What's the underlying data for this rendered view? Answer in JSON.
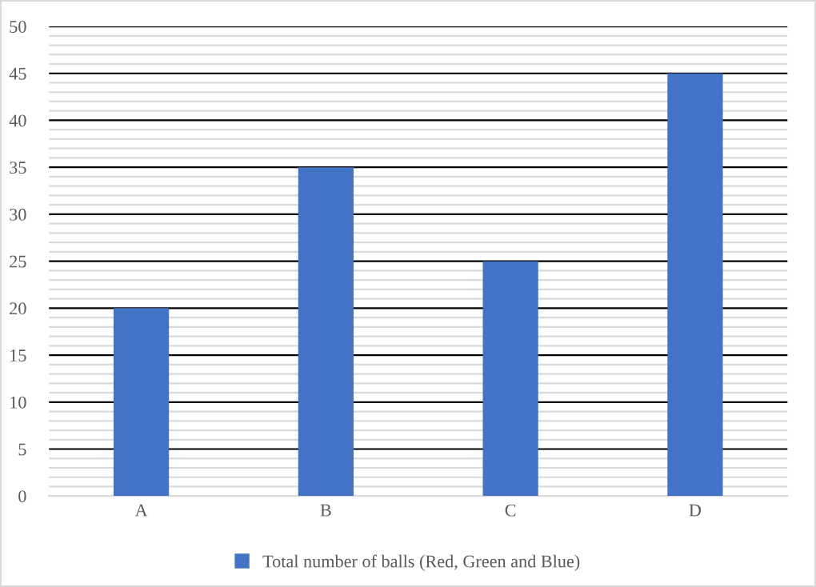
{
  "chart_data": {
    "type": "bar",
    "categories": [
      "A",
      "B",
      "C",
      "D"
    ],
    "series": [
      {
        "name": "Total number of balls (Red, Green and Blue)",
        "color": "#4472c4",
        "values": [
          20,
          35,
          25,
          45
        ]
      }
    ],
    "ylim": [
      0,
      50
    ],
    "yticks": [
      0,
      {
        "value": 1,
        "label": null
      },
      {
        "value": 2,
        "label": null
      },
      {
        "value": 3,
        "label": null
      },
      {
        "value": 4,
        "label": null
      },
      5,
      {
        "value": 6,
        "label": null
      },
      {
        "value": 7,
        "label": null
      },
      {
        "value": 8,
        "label": null
      },
      {
        "value": 9,
        "label": null
      },
      10,
      {
        "value": 11,
        "label": null
      },
      {
        "value": 12,
        "label": null
      },
      {
        "value": 13,
        "label": null
      },
      {
        "value": 14,
        "label": null
      },
      15,
      {
        "value": 16,
        "label": null
      },
      {
        "value": 17,
        "label": null
      },
      {
        "value": 18,
        "label": null
      },
      {
        "value": 19,
        "label": null
      },
      20,
      {
        "value": 21,
        "label": null
      },
      {
        "value": 22,
        "label": null
      },
      {
        "value": 23,
        "label": null
      },
      {
        "value": 24,
        "label": null
      },
      25,
      {
        "value": 26,
        "label": null
      },
      {
        "value": 27,
        "label": null
      },
      {
        "value": 28,
        "label": null
      },
      {
        "value": 29,
        "label": null
      },
      30,
      {
        "value": 31,
        "label": null
      },
      {
        "value": 32,
        "label": null
      },
      {
        "value": 33,
        "label": null
      },
      {
        "value": 34,
        "label": null
      },
      35,
      {
        "value": 36,
        "label": null
      },
      {
        "value": 37,
        "label": null
      },
      {
        "value": 38,
        "label": null
      },
      {
        "value": 39,
        "label": null
      },
      40,
      {
        "value": 41,
        "label": null
      },
      {
        "value": 42,
        "label": null
      },
      {
        "value": 43,
        "label": null
      },
      {
        "value": 44,
        "label": null
      },
      45,
      {
        "value": 46,
        "label": null
      },
      {
        "value": 47,
        "label": null
      },
      {
        "value": 48,
        "label": null
      },
      {
        "value": 49,
        "label": null
      },
      50
    ],
    "grid": "y",
    "legend": "bottom"
  }
}
